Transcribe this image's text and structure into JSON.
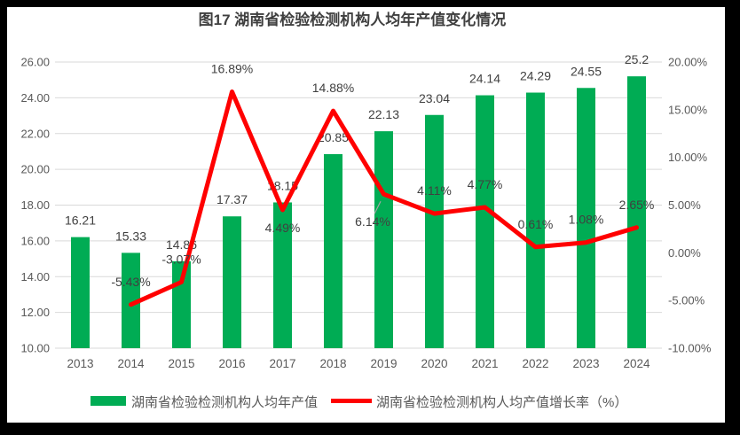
{
  "window": {
    "frame_color": "#000000",
    "panel_color": "#ffffff"
  },
  "colors": {
    "bar": "#00AC54",
    "line": "#FF0000",
    "grid": "#D9D9D9",
    "leader": "#A6A6A6",
    "axis_text": "#595959",
    "label_text": "#404040"
  },
  "chart_data": {
    "type": "combo_bar_line",
    "title": "图17 湖南省检验检测机构人均年产值变化情况",
    "categories": [
      "2013",
      "2014",
      "2015",
      "2016",
      "2017",
      "2018",
      "2019",
      "2020",
      "2021",
      "2022",
      "2023",
      "2024"
    ],
    "grid": true,
    "legend_position": "bottom",
    "left_axis": {
      "min": 10,
      "max": 26,
      "step": 2,
      "tick_labels": [
        "26.00",
        "24.00",
        "22.00",
        "20.00",
        "18.00",
        "16.00",
        "14.00",
        "12.00",
        "10.00"
      ]
    },
    "right_axis": {
      "min": -10,
      "max": 20,
      "step": 5,
      "tick_labels": [
        "20.00%",
        "15.00%",
        "10.00%",
        "5.00%",
        "0.00%",
        "-5.00%",
        "-10.00%"
      ]
    },
    "series": [
      {
        "name": "湖南省检验检测机构人均年产值",
        "type": "bar",
        "axis": "left",
        "values": [
          16.21,
          15.33,
          14.86,
          17.37,
          18.15,
          20.85,
          22.13,
          23.04,
          24.14,
          24.29,
          24.55,
          25.2
        ],
        "labels": [
          "16.21",
          "15.33",
          "14.86",
          "17.37",
          "18.15",
          "20.85",
          "22.13",
          "23.04",
          "24.14",
          "24.29",
          "24.55",
          "25.2"
        ]
      },
      {
        "name": "湖南省检验检测机构人均产值增长率（%）",
        "type": "line",
        "axis": "right",
        "points": [
          {
            "category": "2014",
            "value": -5.43,
            "label": "-5.43%",
            "label_position": "above"
          },
          {
            "category": "2015",
            "value": -3.07,
            "label": "-3.07%",
            "label_position": "above"
          },
          {
            "category": "2016",
            "value": 16.89,
            "label": "16.89%",
            "label_position": "above"
          },
          {
            "category": "2017",
            "value": 4.49,
            "label": "4.49%",
            "label_position": "below"
          },
          {
            "category": "2018",
            "value": 14.88,
            "label": "14.88%",
            "label_position": "above"
          },
          {
            "category": "2019",
            "value": 6.14,
            "label": "6.14%",
            "label_position": "callout"
          },
          {
            "category": "2020",
            "value": 4.11,
            "label": "4.11%",
            "label_position": "above"
          },
          {
            "category": "2021",
            "value": 4.77,
            "label": "4.77%",
            "label_position": "above"
          },
          {
            "category": "2022",
            "value": 0.61,
            "label": "0.61%",
            "label_position": "above"
          },
          {
            "category": "2023",
            "value": 1.08,
            "label": "1.08%",
            "label_position": "above"
          },
          {
            "category": "2024",
            "value": 2.65,
            "label": "2.65%",
            "label_position": "above"
          }
        ]
      }
    ]
  }
}
